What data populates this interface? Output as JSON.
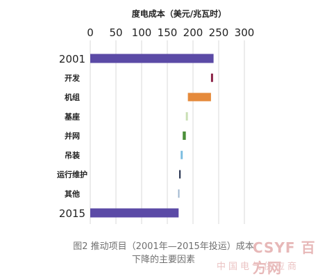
{
  "chart_data": {
    "type": "bar",
    "title": "度电成本（美元/兆瓦时）",
    "xlim": [
      0,
      300
    ],
    "x_ticks": [
      0,
      50,
      100,
      150,
      200,
      250,
      300
    ],
    "grid": true,
    "categories": [
      "2001",
      "开发",
      "机组",
      "基座",
      "并网",
      "吊装",
      "运行维护",
      "其他",
      "2015"
    ],
    "bars": [
      {
        "label": "2001",
        "start": 0,
        "end": 240,
        "color": "#5b4aa6"
      },
      {
        "label": "开发",
        "start": 235,
        "end": 239,
        "color": "#8b2045"
      },
      {
        "label": "机组",
        "start": 190,
        "end": 235,
        "color": "#e58a3b"
      },
      {
        "label": "基座",
        "start": 186,
        "end": 190,
        "color": "#c9dfb4"
      },
      {
        "label": "并网",
        "start": 180,
        "end": 186,
        "color": "#4b8f3a"
      },
      {
        "label": "吊装",
        "start": 176,
        "end": 180,
        "color": "#7bbde0"
      },
      {
        "label": "运行维护",
        "start": 173,
        "end": 176,
        "color": "#2f3a56"
      },
      {
        "label": "其他",
        "start": 171,
        "end": 173,
        "color": "#9fb6cf"
      },
      {
        "label": "2015",
        "start": 0,
        "end": 172,
        "color": "#5b4aa6"
      }
    ]
  },
  "caption": {
    "line1": "图2 推动项目（2001年—2015年投运）成本",
    "line2": "下降的主要因素"
  },
  "watermark": {
    "logo": "CSYF",
    "site": "百方网",
    "text": "中国电气供应商"
  }
}
